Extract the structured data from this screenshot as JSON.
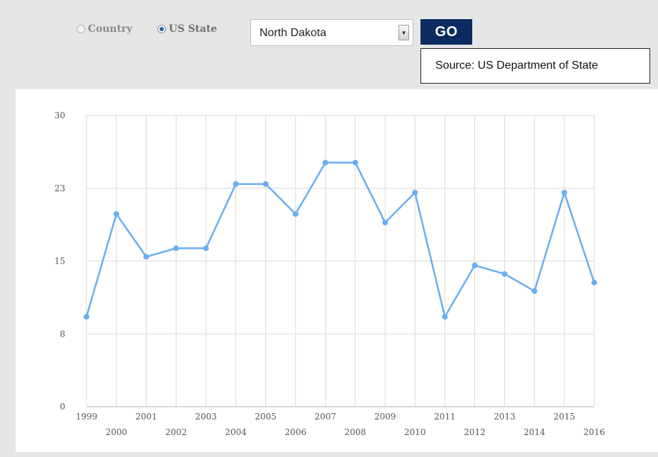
{
  "controls": {
    "country_label": "Country",
    "us_state_label": "US State",
    "selected_mode": "US State",
    "state_value": "North Dakota",
    "go_label": "GO",
    "source_text": "Source: US Department of State"
  },
  "colors": {
    "line": "#6aaef0",
    "go_button": "#0c2b5e"
  },
  "chart_data": {
    "type": "line",
    "x": [
      1999,
      2000,
      2001,
      2002,
      2003,
      2004,
      2005,
      2006,
      2007,
      2008,
      2009,
      2010,
      2011,
      2012,
      2013,
      2014,
      2015,
      2016
    ],
    "categories": [
      "1999",
      "2000",
      "2001",
      "2002",
      "2003",
      "2004",
      "2005",
      "2006",
      "2007",
      "2008",
      "2009",
      "2010",
      "2011",
      "2012",
      "2013",
      "2014",
      "2015",
      "2016"
    ],
    "series": [
      {
        "values": [
          10.5,
          22.5,
          17.5,
          18.5,
          18.5,
          26,
          26,
          22.5,
          28.5,
          28.5,
          21.5,
          25,
          10.5,
          16.5,
          15.5,
          13.5,
          25,
          14.5
        ]
      }
    ],
    "y_ticks": [
      "0",
      "8",
      "15",
      "23",
      "30"
    ],
    "ylim": [
      0,
      34
    ],
    "title": "",
    "xlabel": "",
    "ylabel": "",
    "grid": true
  }
}
